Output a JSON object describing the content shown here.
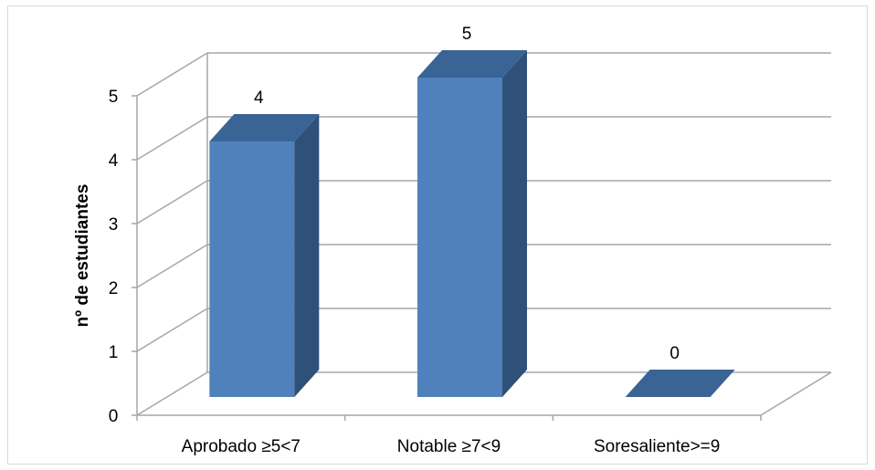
{
  "chart_data": {
    "type": "bar",
    "categories": [
      "Aprobado ≥5<7",
      "Notable ≥7<9",
      "Soresaliente>=9"
    ],
    "values": [
      4,
      5,
      0
    ],
    "data_labels": [
      "4",
      "5",
      "0"
    ],
    "ylabel": "nº de estudiantes",
    "ylim": [
      0,
      5
    ],
    "yticks": [
      "0",
      "1",
      "2",
      "3",
      "4",
      "5"
    ],
    "grid": true,
    "legend": "none",
    "style": "3d",
    "colors": {
      "front": "#4f81bd",
      "side": "#2f5078",
      "top": "#3a6396",
      "grid": "#a6a6a6"
    }
  }
}
